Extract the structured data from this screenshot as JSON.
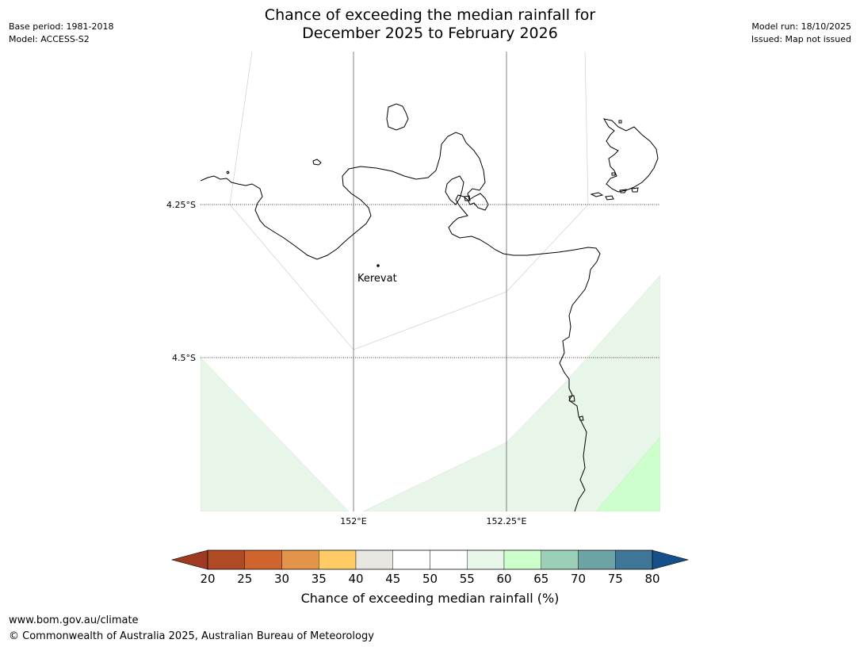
{
  "title": {
    "line1": "Chance of exceeding the median rainfall for",
    "line2": "December 2025 to February 2026"
  },
  "meta": {
    "base_period": "Base period: 1981-2018",
    "model": "Model: ACCESS-S2",
    "model_run": "Model run: 18/10/2025",
    "issued": "Issued: Map not issued"
  },
  "map": {
    "lat_labels": [
      "4.25°S",
      "4.5°S"
    ],
    "lon_labels": [
      "152°E",
      "152.25°E"
    ],
    "place": "Kerevat",
    "colors": {
      "coast": "#000000",
      "shade_55_60": "#e8f5e9",
      "shade_60_65": "#ccffcc",
      "grid": "#808080"
    }
  },
  "colorbar": {
    "label": "Chance of exceeding median rainfall (%)",
    "ticks": [
      "20",
      "25",
      "30",
      "35",
      "40",
      "45",
      "50",
      "55",
      "60",
      "65",
      "70",
      "75",
      "80"
    ],
    "under_color": "#9e3a22",
    "over_color": "#15508a",
    "colors": [
      "#b04a25",
      "#d0642e",
      "#e2944a",
      "#fecb65",
      "#e8e6e1",
      "#ffffff",
      "#ffffff",
      "#e8f5e9",
      "#ccffcc",
      "#9ccfb8",
      "#6da3a5",
      "#3f7698"
    ]
  },
  "footer": {
    "url": "www.bom.gov.au/climate",
    "copyright": "© Commonwealth of Australia 2025, Australian Bureau of Meteorology"
  }
}
